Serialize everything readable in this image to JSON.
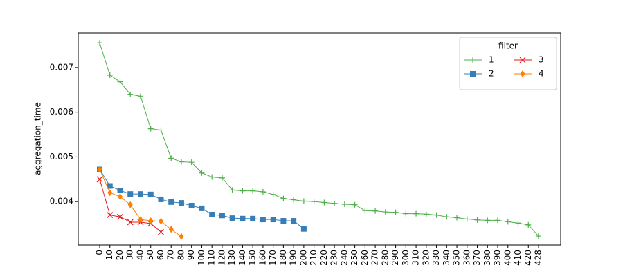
{
  "chart_data": {
    "type": "line",
    "ylabel": "aggregation_time",
    "categories": [
      "0",
      "10",
      "20",
      "30",
      "40",
      "50",
      "60",
      "70",
      "80",
      "90",
      "100",
      "110",
      "120",
      "130",
      "140",
      "150",
      "160",
      "170",
      "180",
      "190",
      "200",
      "210",
      "220",
      "230",
      "240",
      "250",
      "260",
      "270",
      "280",
      "290",
      "300",
      "310",
      "320",
      "330",
      "340",
      "350",
      "360",
      "370",
      "380",
      "390",
      "400",
      "410",
      "420",
      "428"
    ],
    "series": [
      {
        "name": "1",
        "color": "#4daf4a",
        "marker": "plus",
        "values": [
          0.00755,
          0.00683,
          0.00668,
          0.0064,
          0.00636,
          0.00563,
          0.0056,
          0.00497,
          0.00489,
          0.00488,
          0.00464,
          0.00455,
          0.00453,
          0.00426,
          0.00424,
          0.00424,
          0.00422,
          0.00416,
          0.00407,
          0.00404,
          0.00401,
          0.004,
          0.00398,
          0.00396,
          0.00394,
          0.00393,
          0.0038,
          0.00379,
          0.00377,
          0.00376,
          0.00373,
          0.00373,
          0.00372,
          0.0037,
          0.00366,
          0.00364,
          0.00361,
          0.00359,
          0.00358,
          0.00358,
          0.00355,
          0.00352,
          0.00348,
          0.00323
        ]
      },
      {
        "name": "2",
        "color": "#377eb8",
        "marker": "square",
        "values": [
          0.00472,
          0.00435,
          0.00425,
          0.00417,
          0.00417,
          0.00416,
          0.00405,
          0.00399,
          0.00397,
          0.00391,
          0.00385,
          0.00371,
          0.00369,
          0.00363,
          0.00362,
          0.00362,
          0.0036,
          0.0036,
          0.00357,
          0.00357,
          0.00339,
          null,
          null,
          null,
          null,
          null,
          null,
          null,
          null,
          null,
          null,
          null,
          null,
          null,
          null,
          null,
          null,
          null,
          null,
          null,
          null,
          null,
          null,
          null
        ]
      },
      {
        "name": "3",
        "color": "#e41a1c",
        "marker": "x",
        "values": [
          0.0045,
          0.0037,
          0.00366,
          0.00354,
          0.00354,
          0.00351,
          0.00332,
          null,
          null,
          null,
          null,
          null,
          null,
          null,
          null,
          null,
          null,
          null,
          null,
          null,
          null,
          null,
          null,
          null,
          null,
          null,
          null,
          null,
          null,
          null,
          null,
          null,
          null,
          null,
          null,
          null,
          null,
          null,
          null,
          null,
          null,
          null,
          null,
          null
        ]
      },
      {
        "name": "4",
        "color": "#ff7f00",
        "marker": "diamond",
        "values": [
          0.00472,
          0.0042,
          0.00411,
          0.00393,
          0.0036,
          0.00357,
          0.00356,
          0.00338,
          0.00322,
          null,
          null,
          null,
          null,
          null,
          null,
          null,
          null,
          null,
          null,
          null,
          null,
          null,
          null,
          null,
          null,
          null,
          null,
          null,
          null,
          null,
          null,
          null,
          null,
          null,
          null,
          null,
          null,
          null,
          null,
          null,
          null,
          null,
          null,
          null
        ]
      }
    ],
    "ylim": [
      0.00303,
      0.00777
    ],
    "yticks": [
      0.004,
      0.005,
      0.006,
      0.007
    ],
    "legend_title": "filter",
    "legend": "upper right"
  }
}
